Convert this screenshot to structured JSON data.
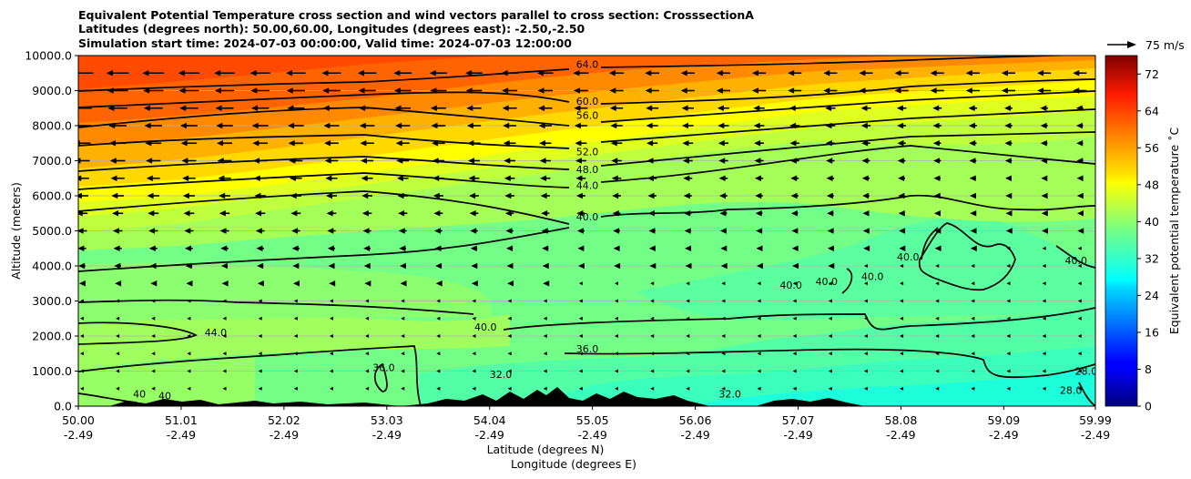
{
  "chart_data": {
    "type": "heatmap",
    "title_lines": [
      "Equivalent Potential Temperature cross section and wind vectors parallel to cross section: CrosssectionA",
      "Latitudes (degrees north): 50.00,60.00, Longitudes (degrees east): -2.50,-2.50",
      "Simulation start time: 2024-07-03 00:00:00, Valid time: 2024-07-03 12:00:00"
    ],
    "xlabel_lines": [
      "Latitude (degrees N)",
      "Longitude (degrees E)"
    ],
    "ylabel": "Altitude (meters)",
    "x_ticks_lat": [
      "50.00",
      "51.01",
      "52.02",
      "53.03",
      "54.04",
      "55.05",
      "56.06",
      "57.07",
      "58.08",
      "59.09",
      "59.99"
    ],
    "x_ticks_lon": [
      "-2.49",
      "-2.49",
      "-2.49",
      "-2.49",
      "-2.49",
      "-2.49",
      "-2.49",
      "-2.49",
      "-2.49",
      "-2.49",
      "-2.49"
    ],
    "x_range": [
      50.0,
      59.99
    ],
    "ylim": [
      0,
      10000
    ],
    "y_ticks": [
      "0.0",
      "1000.0",
      "2000.0",
      "3000.0",
      "4000.0",
      "5000.0",
      "6000.0",
      "7000.0",
      "8000.0",
      "9000.0",
      "10000.0"
    ],
    "grid": "horizontal",
    "colorbar": {
      "label": "Equivalent potential temperature ˚C",
      "range": [
        0,
        76
      ],
      "ticks": [
        "0",
        "8",
        "16",
        "24",
        "32",
        "40",
        "48",
        "56",
        "64",
        "72"
      ],
      "colormap": "jet"
    },
    "quiver_key": "75 m/s",
    "contour_levels": [
      28,
      32,
      36,
      40,
      44,
      48,
      52,
      56,
      60,
      64
    ],
    "contour_labels": [
      {
        "text": "64.0",
        "x": 55.0,
        "y": 9650
      },
      {
        "text": "60.0",
        "x": 55.0,
        "y": 8600
      },
      {
        "text": "56.0",
        "x": 55.0,
        "y": 8200
      },
      {
        "text": "52.0",
        "x": 55.0,
        "y": 7150
      },
      {
        "text": "48.0",
        "x": 55.0,
        "y": 6650
      },
      {
        "text": "44.0",
        "x": 55.0,
        "y": 6200
      },
      {
        "text": "40.0",
        "x": 55.0,
        "y": 5300
      },
      {
        "text": "40.0",
        "x": 54.0,
        "y": 2150
      },
      {
        "text": "36.0",
        "x": 55.0,
        "y": 1530
      },
      {
        "text": "36.0",
        "x": 53.0,
        "y": 1000
      },
      {
        "text": "44.0",
        "x": 51.35,
        "y": 2000
      },
      {
        "text": "40.0",
        "x": 57.0,
        "y": 3350
      },
      {
        "text": "40.0",
        "x": 57.35,
        "y": 3450
      },
      {
        "text": "40.0",
        "x": 57.8,
        "y": 3600
      },
      {
        "text": "40.0",
        "x": 58.15,
        "y": 4150
      },
      {
        "text": "40.0",
        "x": 59.8,
        "y": 4050
      },
      {
        "text": "32.0",
        "x": 54.15,
        "y": 800
      },
      {
        "text": "32.0",
        "x": 56.4,
        "y": 250
      },
      {
        "text": "28.0",
        "x": 59.75,
        "y": 350
      },
      {
        "text": "28.0",
        "x": 59.9,
        "y": 900
      },
      {
        "text": "40",
        "x": 50.6,
        "y": 250
      },
      {
        "text": "40",
        "x": 50.85,
        "y": 200
      }
    ],
    "wind_direction_aloft": "southward (toward 50N)"
  }
}
